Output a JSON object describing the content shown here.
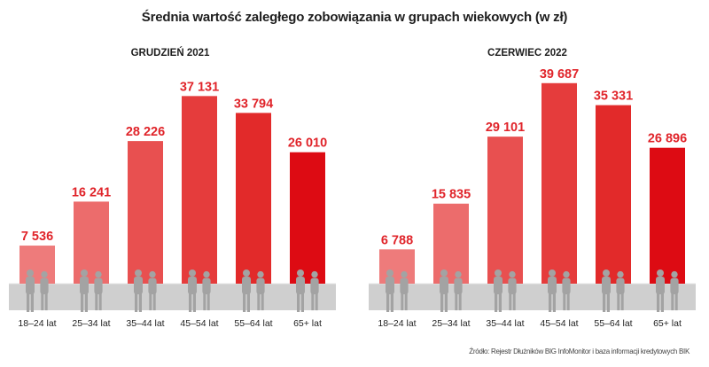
{
  "title": "Średnia wartość zaległego zobowiązania w grupach wiekowych (w zł)",
  "source": "Źródło: Rejestr Dłużników BIG InfoMonitor i baza informacji kredytowych BIK",
  "colors": {
    "value_label": "#e0242a",
    "bars": [
      "#ee7b7b",
      "#ec6c6c",
      "#e85050",
      "#e53c3c",
      "#e22a2a",
      "#dd0b13"
    ],
    "floor": "#cfcfcf",
    "silhouette": "#a3a3a3"
  },
  "chart_data": [
    {
      "type": "bar",
      "title": "GRUDZIEŃ 2021",
      "categories": [
        "18–24 lat",
        "25–34 lat",
        "35–44 lat",
        "45–54 lat",
        "55–64 lat",
        "65+ lat"
      ],
      "values": [
        7536,
        16241,
        28226,
        37131,
        33794,
        26010
      ],
      "value_labels": [
        "7 536",
        "16 241",
        "28 226",
        "37 131",
        "33 794",
        "26 010"
      ],
      "ylim": [
        0,
        40000
      ],
      "grid": false,
      "legend": "none"
    },
    {
      "type": "bar",
      "title": "CZERWIEC 2022",
      "categories": [
        "18–24 lat",
        "25–34 lat",
        "35–44 lat",
        "45–54 lat",
        "55–64 lat",
        "65+ lat"
      ],
      "values": [
        6788,
        15835,
        29101,
        39687,
        35331,
        26896
      ],
      "value_labels": [
        "6 788",
        "15 835",
        "29 101",
        "39 687",
        "35 331",
        "26 896"
      ],
      "ylim": [
        0,
        40000
      ],
      "grid": false,
      "legend": "none"
    }
  ]
}
